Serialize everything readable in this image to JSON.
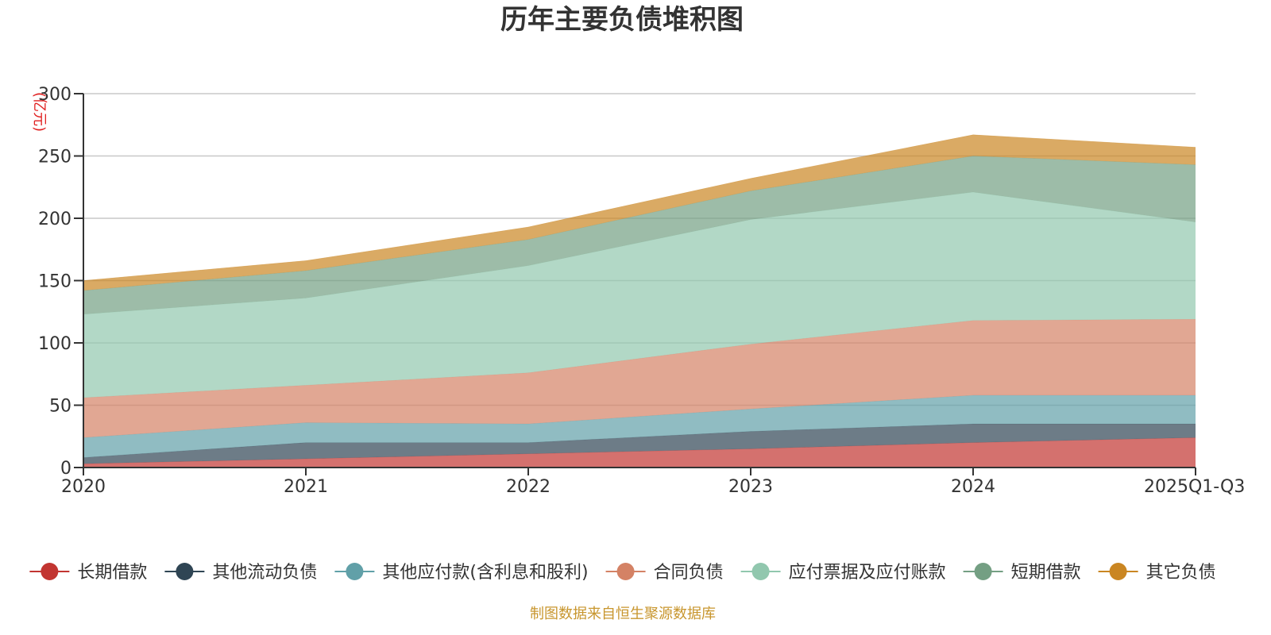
{
  "chart_data": {
    "type": "area",
    "stacked": true,
    "title": "历年主要负债堆积图",
    "unit_label": "(亿元)",
    "categories": [
      "2020",
      "2021",
      "2022",
      "2023",
      "2024",
      "2025Q1-Q3"
    ],
    "y_ticks": [
      "0",
      "50",
      "100",
      "150",
      "200",
      "250",
      "300"
    ],
    "ylim": [
      0,
      300
    ],
    "grid": true,
    "legend_position": "bottom",
    "series": [
      {
        "name": "长期借款",
        "color": "#c23531",
        "values": [
          3,
          7,
          11,
          15,
          20,
          24
        ]
      },
      {
        "name": "其他流动负债",
        "color": "#2f4554",
        "values": [
          5,
          13,
          9,
          14,
          15,
          11
        ]
      },
      {
        "name": "其他应付款(含利息和股利)",
        "color": "#61a0a8",
        "values": [
          16,
          16,
          15,
          18,
          23,
          23
        ]
      },
      {
        "name": "合同负债",
        "color": "#d48265",
        "values": [
          32,
          30,
          41,
          52,
          60,
          61
        ]
      },
      {
        "name": "应付票据及应付账款",
        "color": "#91c7ae",
        "values": [
          67,
          70,
          86,
          100,
          103,
          78
        ]
      },
      {
        "name": "短期借款",
        "color": "#749f83",
        "values": [
          19,
          22,
          21,
          23,
          29,
          46
        ]
      },
      {
        "name": "其它负债",
        "color": "#ca8622",
        "values": [
          8,
          8,
          10,
          10,
          17,
          14
        ]
      }
    ],
    "source_note": "制图数据来自恒生聚源数据库"
  }
}
